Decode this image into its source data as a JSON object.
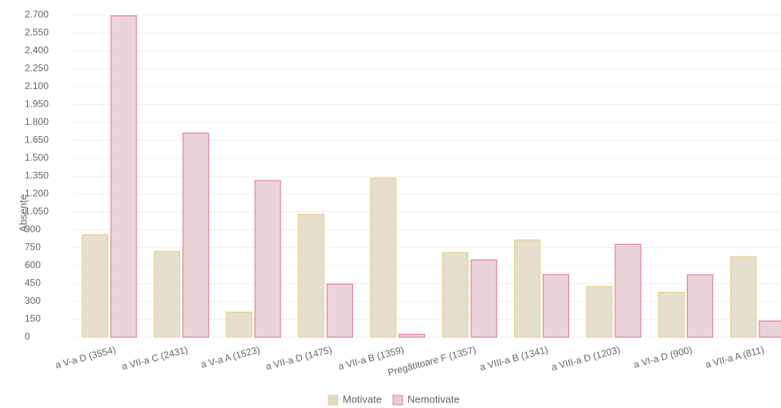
{
  "chart_data": {
    "type": "bar",
    "y_label": "Absențe",
    "categories": [
      "a V-a D (3554)",
      "a VII-a C (2431)",
      "a V-a A (1523)",
      "a VII-a D (1475)",
      "a VII-a B (1359)",
      "Pregătitoare F (1357)",
      "a VIII-a B (1341)",
      "a VIII-a D (1203)",
      "a VI-a D (900)",
      "a VII-a A (811)"
    ],
    "series": [
      {
        "name": "Motivate",
        "color": "#e0d9c6",
        "border": "#e8d08f",
        "values": [
          860,
          720,
          210,
          1030,
          1335,
          710,
          815,
          425,
          377,
          675
        ]
      },
      {
        "name": "Nemotivate",
        "color": "#e6cdd4",
        "border": "#e0839b",
        "values": [
          2694,
          1711,
          1313,
          445,
          24,
          647,
          526,
          778,
          523,
          136
        ]
      }
    ],
    "ylim": [
      0,
      2700
    ],
    "yticks": [
      0,
      150,
      300,
      450,
      600,
      750,
      900,
      {
        "value": 1050,
        "label": "1.050"
      },
      {
        "value": 1200,
        "label": "1.200"
      },
      {
        "value": 1350,
        "label": "1.350"
      },
      {
        "value": 1500,
        "label": "1.500"
      },
      {
        "value": 1650,
        "label": "1.650"
      },
      {
        "value": 1800,
        "label": "1.800"
      },
      {
        "value": 1950,
        "label": "1.950"
      },
      {
        "value": 2100,
        "label": "2.100"
      },
      {
        "value": 2250,
        "label": "2.250"
      },
      {
        "value": 2400,
        "label": "2.400"
      },
      {
        "value": 2550,
        "label": "2.550"
      },
      {
        "value": 2700,
        "label": "2.700"
      }
    ],
    "grid": true,
    "legend": "bottom"
  }
}
